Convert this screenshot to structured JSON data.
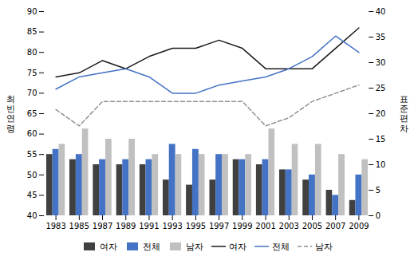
{
  "chart_data": {
    "type": "bar",
    "categories": [
      "1983",
      "1985",
      "1987",
      "1989",
      "1991",
      "1993",
      "1995",
      "1997",
      "1999",
      "2001",
      "2003",
      "2005",
      "2007",
      "2009"
    ],
    "series": [
      {
        "name": "여자",
        "type": "bar",
        "axis": "y2",
        "color": "#404040",
        "values": [
          12,
          11,
          10,
          10,
          10,
          7,
          6,
          7,
          11,
          10,
          9,
          7,
          5,
          3
        ]
      },
      {
        "name": "전체",
        "type": "bar",
        "axis": "y2",
        "color": "#4472C4",
        "values": [
          13,
          12,
          11,
          11,
          11,
          14,
          13,
          12,
          11,
          11,
          9,
          8,
          4,
          8
        ]
      },
      {
        "name": "남자",
        "type": "bar",
        "axis": "y2",
        "color": "#C0C0C0",
        "values": [
          14,
          17,
          15,
          15,
          12,
          12,
          12,
          12,
          12,
          17,
          14,
          14,
          12,
          11
        ]
      },
      {
        "name": "여자",
        "type": "line",
        "color": "#1a1a1a",
        "line_style": "solid",
        "values": [
          74,
          75,
          78,
          76,
          79,
          81,
          81,
          83,
          81,
          76,
          76,
          76,
          81,
          86
        ]
      },
      {
        "name": "전체",
        "type": "line",
        "color": "#4472C4",
        "line_style": "solid",
        "values": [
          71,
          74,
          75,
          76,
          74,
          70,
          70,
          72,
          73,
          74,
          76,
          79,
          84,
          80
        ]
      },
      {
        "name": "남자",
        "type": "line",
        "color": "#909090",
        "line_style": "dashed",
        "values": [
          66,
          62,
          68,
          68,
          68,
          68,
          68,
          68,
          68,
          62,
          64,
          68,
          70,
          72
        ]
      }
    ],
    "ylabel": "최\n빈\n연\n령",
    "y2label": "표\n준\n편\n차",
    "ylim": [
      40,
      90
    ],
    "yticks": [
      40,
      45,
      50,
      55,
      60,
      65,
      70,
      75,
      80,
      85,
      90
    ],
    "y2lim": [
      0,
      40
    ],
    "y2ticks": [
      0,
      5,
      10,
      15,
      20,
      25,
      30,
      35,
      40
    ],
    "grid": false,
    "legend": "bottom"
  }
}
